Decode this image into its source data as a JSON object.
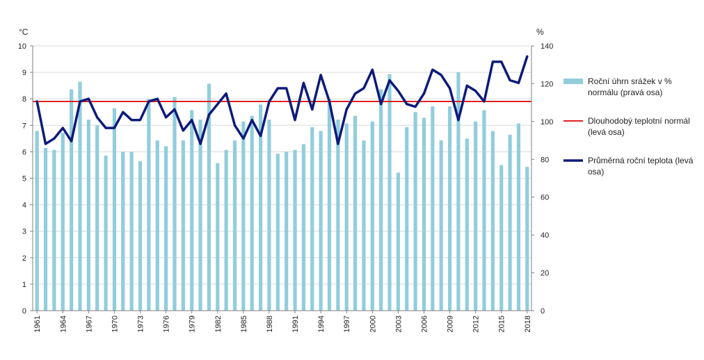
{
  "chart_data": {
    "type": "bar+line",
    "title": "",
    "left_axis": {
      "unit": "°C",
      "min": 0,
      "max": 10,
      "ticks": [
        0,
        1,
        2,
        3,
        4,
        5,
        6,
        7,
        8,
        9,
        10
      ]
    },
    "right_axis": {
      "unit": "%",
      "min": 0,
      "max": 140,
      "ticks": [
        0,
        20,
        40,
        60,
        80,
        100,
        120,
        140
      ]
    },
    "years": [
      1961,
      1962,
      1963,
      1964,
      1965,
      1966,
      1967,
      1968,
      1969,
      1970,
      1971,
      1972,
      1973,
      1974,
      1975,
      1976,
      1977,
      1978,
      1979,
      1980,
      1981,
      1982,
      1983,
      1984,
      1985,
      1986,
      1987,
      1988,
      1989,
      1990,
      1991,
      1992,
      1993,
      1994,
      1995,
      1996,
      1997,
      1998,
      1999,
      2000,
      2001,
      2002,
      2003,
      2004,
      2005,
      2006,
      2007,
      2008,
      2009,
      2010,
      2011,
      2012,
      2013,
      2014,
      2015,
      2016,
      2017,
      2018
    ],
    "x_tick_labels": [
      "1961",
      "1964",
      "1967",
      "1970",
      "1973",
      "1976",
      "1979",
      "1982",
      "1985",
      "1988",
      "1991",
      "1994",
      "1997",
      "2000",
      "2003",
      "2006",
      "2009",
      "2012",
      "2015",
      "2018"
    ],
    "series": [
      {
        "name": "Roční úhrn srážek v % normálu (pravá osa)",
        "kind": "bar",
        "axis": "right",
        "color": "#92CDDC",
        "values": [
          95,
          86,
          85,
          94,
          117,
          121,
          101,
          98,
          82,
          107,
          84,
          84,
          79,
          112,
          90,
          87,
          113,
          90,
          106,
          101,
          120,
          78,
          85,
          90,
          100,
          103,
          109,
          101,
          83,
          84,
          85,
          88,
          97,
          95,
          112,
          101,
          99,
          103,
          90,
          100,
          117,
          125,
          73,
          97,
          105,
          102,
          108,
          90,
          108,
          126,
          91,
          100,
          106,
          95,
          77,
          93,
          99,
          76
        ]
      },
      {
        "name": "Dlouhodobý teplotní normál (levá osa)",
        "kind": "line",
        "axis": "left",
        "color": "#E02020",
        "value": 7.9
      },
      {
        "name": "Průměrná roční teplota (levá osa)",
        "kind": "line",
        "axis": "left",
        "color": "#0D1A7A",
        "values": [
          7.9,
          6.3,
          6.5,
          6.9,
          6.4,
          7.9,
          8.0,
          7.3,
          6.9,
          6.9,
          7.5,
          7.2,
          7.2,
          7.9,
          8.0,
          7.3,
          7.6,
          6.8,
          7.2,
          6.3,
          7.4,
          7.8,
          8.2,
          7.0,
          6.5,
          7.2,
          6.6,
          7.9,
          8.4,
          8.4,
          7.2,
          8.6,
          7.6,
          8.9,
          7.9,
          6.3,
          7.6,
          8.2,
          8.4,
          9.1,
          7.8,
          8.7,
          8.3,
          7.8,
          7.7,
          8.2,
          9.1,
          8.9,
          8.4,
          7.2,
          8.5,
          8.3,
          7.9,
          9.4,
          9.4,
          8.7,
          8.6,
          9.6
        ]
      }
    ],
    "legend_position": "right",
    "grid": "horizontal"
  }
}
